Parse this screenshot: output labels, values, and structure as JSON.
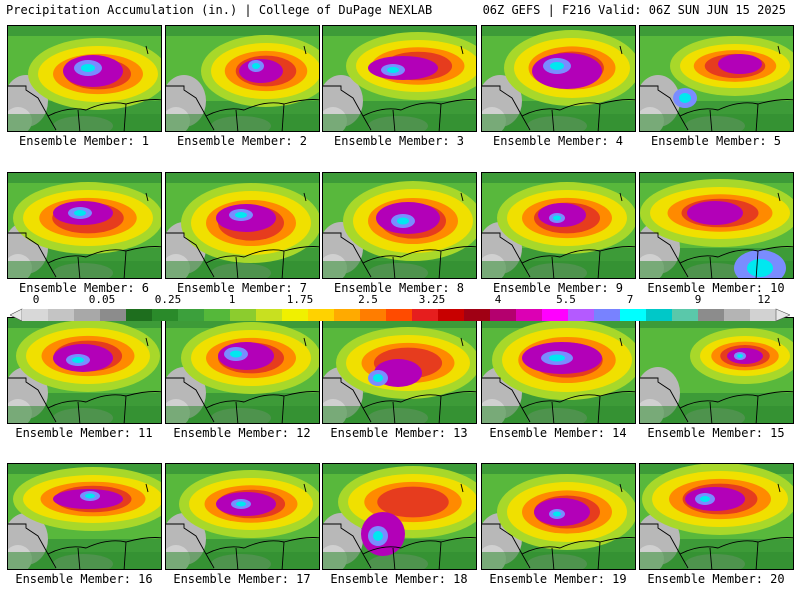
{
  "header": {
    "left": "Precipitation Accumulation (in.) | College of DuPage NEXLAB",
    "right": "06Z GEFS | F216 Valid: 06Z SUN JUN 15 2025"
  },
  "members": [
    {
      "label": "Ensemble Member: 1"
    },
    {
      "label": "Ensemble Member: 2"
    },
    {
      "label": "Ensemble Member: 3"
    },
    {
      "label": "Ensemble Member: 4"
    },
    {
      "label": "Ensemble Member: 5"
    },
    {
      "label": "Ensemble Member: 6"
    },
    {
      "label": "Ensemble Member: 7"
    },
    {
      "label": "Ensemble Member: 8"
    },
    {
      "label": "Ensemble Member: 9"
    },
    {
      "label": "Ensemble Member: 10"
    },
    {
      "label": "Ensemble Member: 11"
    },
    {
      "label": "Ensemble Member: 12"
    },
    {
      "label": "Ensemble Member: 13"
    },
    {
      "label": "Ensemble Member: 14"
    },
    {
      "label": "Ensemble Member: 15"
    },
    {
      "label": "Ensemble Member: 16"
    },
    {
      "label": "Ensemble Member: 17"
    },
    {
      "label": "Ensemble Member: 18"
    },
    {
      "label": "Ensemble Member: 19"
    },
    {
      "label": "Ensemble Member: 20"
    }
  ],
  "colorbar": {
    "tick_labels": [
      "0",
      "0.05",
      "0.25",
      "1",
      "1.75",
      "2.5",
      "3.25",
      "4",
      "5.5",
      "7",
      "9",
      "12"
    ],
    "colors": [
      "#d8d8d8",
      "#c4c4c4",
      "#a8a8a8",
      "#8c8c8c",
      "#1e6e1e",
      "#2a8a2a",
      "#3ca03c",
      "#55b83a",
      "#8ccc2e",
      "#c8e020",
      "#f0f000",
      "#ffd200",
      "#ffaa00",
      "#ff7d00",
      "#ff4b00",
      "#e61e1e",
      "#c80000",
      "#a00014",
      "#b4006e",
      "#dc00b4",
      "#ff00ff",
      "#b45aff",
      "#7882ff",
      "#00ffff",
      "#00c8c8",
      "#5ac8aa",
      "#8c8c8c",
      "#b4b4b4",
      "#d2d2d2"
    ]
  }
}
